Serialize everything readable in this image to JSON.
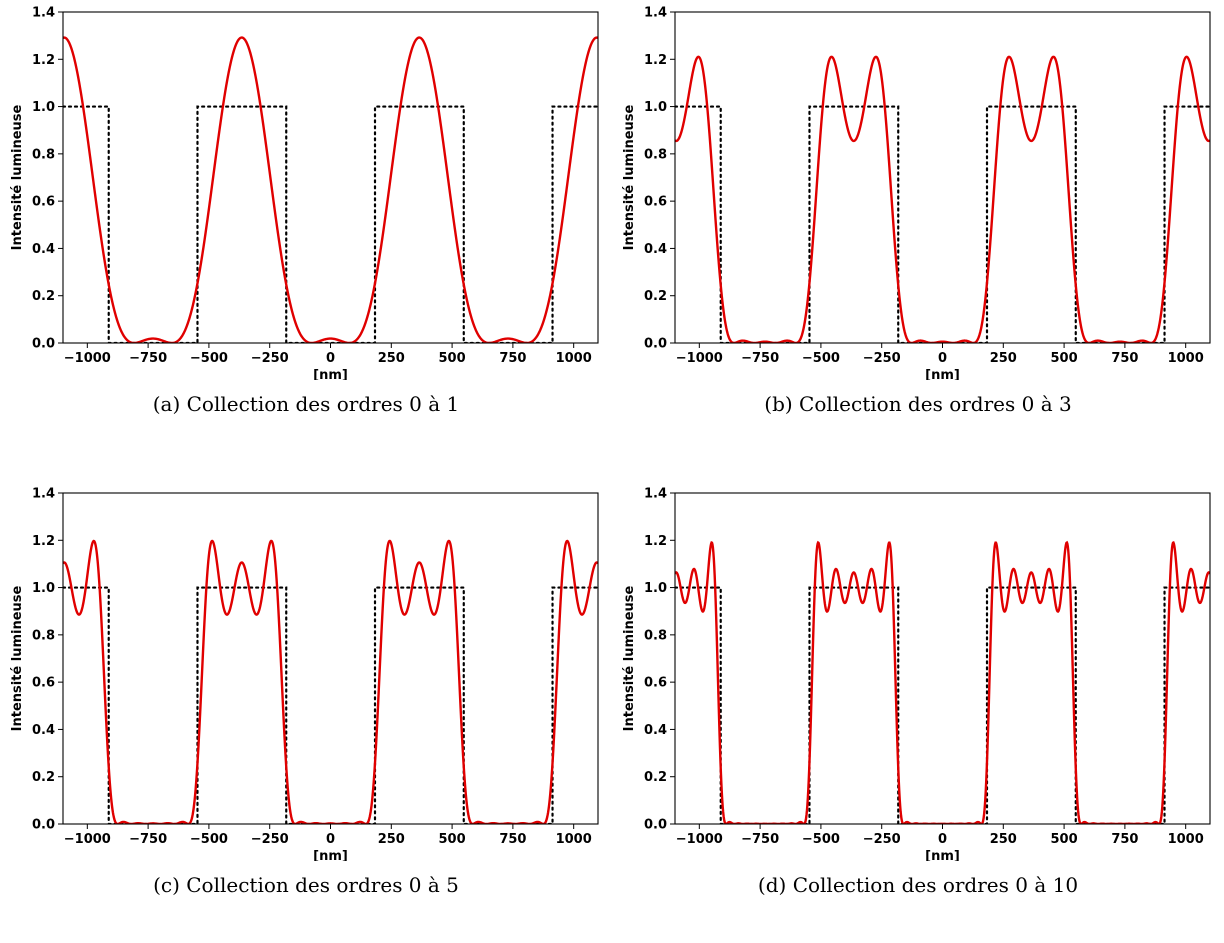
{
  "chart_data": [
    {
      "type": "line",
      "caption": "(a) Collection des ordres 0 à 1",
      "xlabel": "[nm]",
      "ylabel": "Intensité lumineuse",
      "xlim": [
        -1100,
        1100
      ],
      "ylim": [
        0,
        1.4
      ],
      "xticks": [
        -1000,
        -750,
        -500,
        -250,
        0,
        250,
        500,
        750,
        1000
      ],
      "xtick_labels": [
        "−1000",
        "−750",
        "−500",
        "−250",
        "0",
        "250",
        "500",
        "750",
        "1000"
      ],
      "yticks": [
        0,
        0.2,
        0.4,
        0.6,
        0.8,
        1.0,
        1.2,
        1.4
      ],
      "ytick_labels": [
        "0.0",
        "0.2",
        "0.4",
        "0.6",
        "0.8",
        "1.0",
        "1.2",
        "1.4"
      ],
      "grid": false,
      "period": 730,
      "duty": 0.5,
      "max_order": 1,
      "series": [
        {
          "style": "dotted",
          "color": "#000000",
          "role": "ideal-square-wave"
        },
        {
          "style": "solid",
          "color": "#e00000",
          "role": "reconstructed-intensity"
        }
      ]
    },
    {
      "type": "line",
      "caption": "(b) Collection des ordres 0 à 3",
      "xlabel": "[nm]",
      "ylabel": "Intensité lumineuse",
      "xlim": [
        -1100,
        1100
      ],
      "ylim": [
        0,
        1.4
      ],
      "xticks": [
        -1000,
        -750,
        -500,
        -250,
        0,
        250,
        500,
        750,
        1000
      ],
      "xtick_labels": [
        "−1000",
        "−750",
        "−500",
        "−250",
        "0",
        "250",
        "500",
        "750",
        "1000"
      ],
      "yticks": [
        0,
        0.2,
        0.4,
        0.6,
        0.8,
        1.0,
        1.2,
        1.4
      ],
      "ytick_labels": [
        "0.0",
        "0.2",
        "0.4",
        "0.6",
        "0.8",
        "1.0",
        "1.2",
        "1.4"
      ],
      "grid": false,
      "period": 730,
      "duty": 0.5,
      "max_order": 3,
      "series": [
        {
          "style": "dotted",
          "color": "#000000",
          "role": "ideal-square-wave"
        },
        {
          "style": "solid",
          "color": "#e00000",
          "role": "reconstructed-intensity"
        }
      ]
    },
    {
      "type": "line",
      "caption": "(c) Collection des ordres 0 à 5",
      "xlabel": "[nm]",
      "ylabel": "Intensité lumineuse",
      "xlim": [
        -1100,
        1100
      ],
      "ylim": [
        0,
        1.4
      ],
      "xticks": [
        -1000,
        -750,
        -500,
        -250,
        0,
        250,
        500,
        750,
        1000
      ],
      "xtick_labels": [
        "−1000",
        "−750",
        "−500",
        "−250",
        "0",
        "250",
        "500",
        "750",
        "1000"
      ],
      "yticks": [
        0,
        0.2,
        0.4,
        0.6,
        0.8,
        1.0,
        1.2,
        1.4
      ],
      "ytick_labels": [
        "0.0",
        "0.2",
        "0.4",
        "0.6",
        "0.8",
        "1.0",
        "1.2",
        "1.4"
      ],
      "grid": false,
      "period": 730,
      "duty": 0.5,
      "max_order": 5,
      "series": [
        {
          "style": "dotted",
          "color": "#000000",
          "role": "ideal-square-wave"
        },
        {
          "style": "solid",
          "color": "#e00000",
          "role": "reconstructed-intensity"
        }
      ]
    },
    {
      "type": "line",
      "caption": "(d) Collection des ordres 0 à 10",
      "xlabel": "[nm]",
      "ylabel": "Intensité lumineuse",
      "xlim": [
        -1100,
        1100
      ],
      "ylim": [
        0,
        1.4
      ],
      "xticks": [
        -1000,
        -750,
        -500,
        -250,
        0,
        250,
        500,
        750,
        1000
      ],
      "xtick_labels": [
        "−1000",
        "−750",
        "−500",
        "−250",
        "0",
        "250",
        "500",
        "750",
        "1000"
      ],
      "yticks": [
        0,
        0.2,
        0.4,
        0.6,
        0.8,
        1.0,
        1.2,
        1.4
      ],
      "ytick_labels": [
        "0.0",
        "0.2",
        "0.4",
        "0.6",
        "0.8",
        "1.0",
        "1.2",
        "1.4"
      ],
      "grid": false,
      "period": 730,
      "duty": 0.5,
      "max_order": 10,
      "series": [
        {
          "style": "dotted",
          "color": "#000000",
          "role": "ideal-square-wave"
        },
        {
          "style": "solid",
          "color": "#e00000",
          "role": "reconstructed-intensity"
        }
      ]
    }
  ]
}
